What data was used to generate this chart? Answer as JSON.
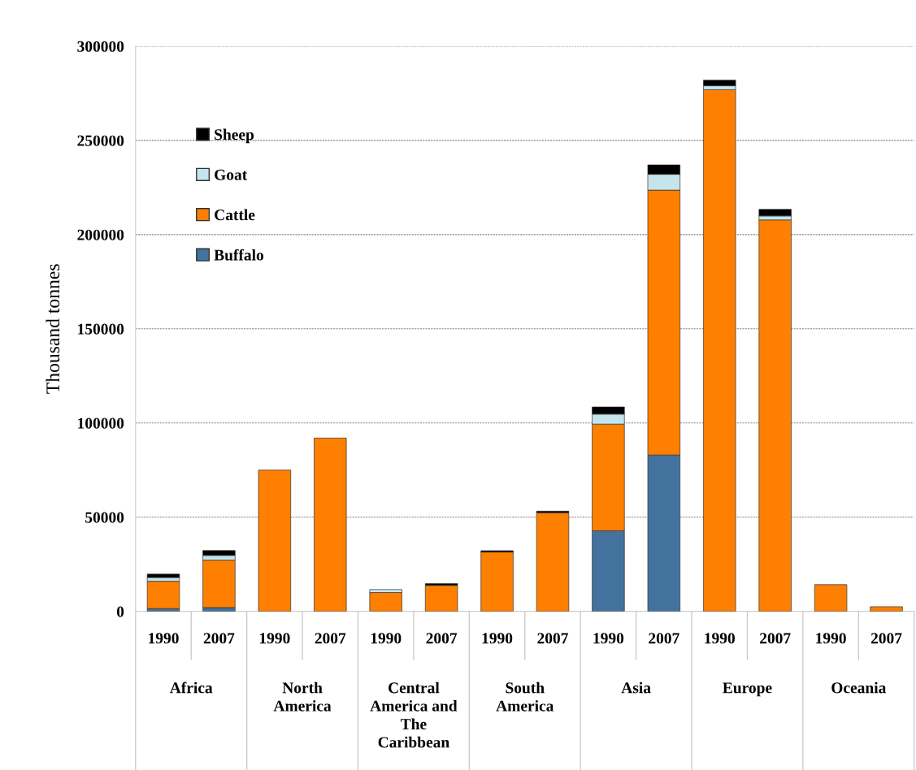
{
  "chart_data": {
    "type": "bar",
    "stacked": true,
    "ylabel": "Thousand tonnes",
    "categories": [
      "1990",
      "2007",
      "1990",
      "2007",
      "1990",
      "2007",
      "1990",
      "2007",
      "1990",
      "2007",
      "1990",
      "2007",
      "1990",
      "2007"
    ],
    "annotations": [
      "Africa",
      "North\nAmerica",
      "Central\nAmerica and\nThe\nCaribbean",
      "South\nAmerica",
      "Asia",
      "Europe",
      "Oceania"
    ],
    "series": [
      {
        "name": "Buffalo",
        "color": "#44729f",
        "values": [
          1500,
          2000,
          null,
          null,
          null,
          null,
          null,
          null,
          42800,
          83000,
          null,
          null,
          null,
          null
        ]
      },
      {
        "name": "Cattle",
        "color": "#ff7f00",
        "values": [
          14500,
          25200,
          75000,
          92000,
          10000,
          13800,
          31500,
          52400,
          56600,
          140600,
          276900,
          207800,
          14200,
          2500
        ]
      },
      {
        "name": "Goat",
        "color": "#c5e5ec",
        "values": [
          2000,
          2500,
          null,
          null,
          1600,
          null,
          null,
          null,
          5300,
          8400,
          2100,
          2100,
          null,
          null
        ]
      },
      {
        "name": "Sheep",
        "color": "#000000",
        "values": [
          1800,
          2600,
          null,
          null,
          null,
          1000,
          700,
          800,
          3800,
          5000,
          3000,
          3500,
          null,
          null
        ]
      }
    ],
    "ylim": [
      0,
      300000
    ],
    "yticks": [
      0,
      50000,
      100000,
      150000,
      200000,
      250000,
      300000
    ],
    "grid": "y",
    "legend": "top left"
  }
}
